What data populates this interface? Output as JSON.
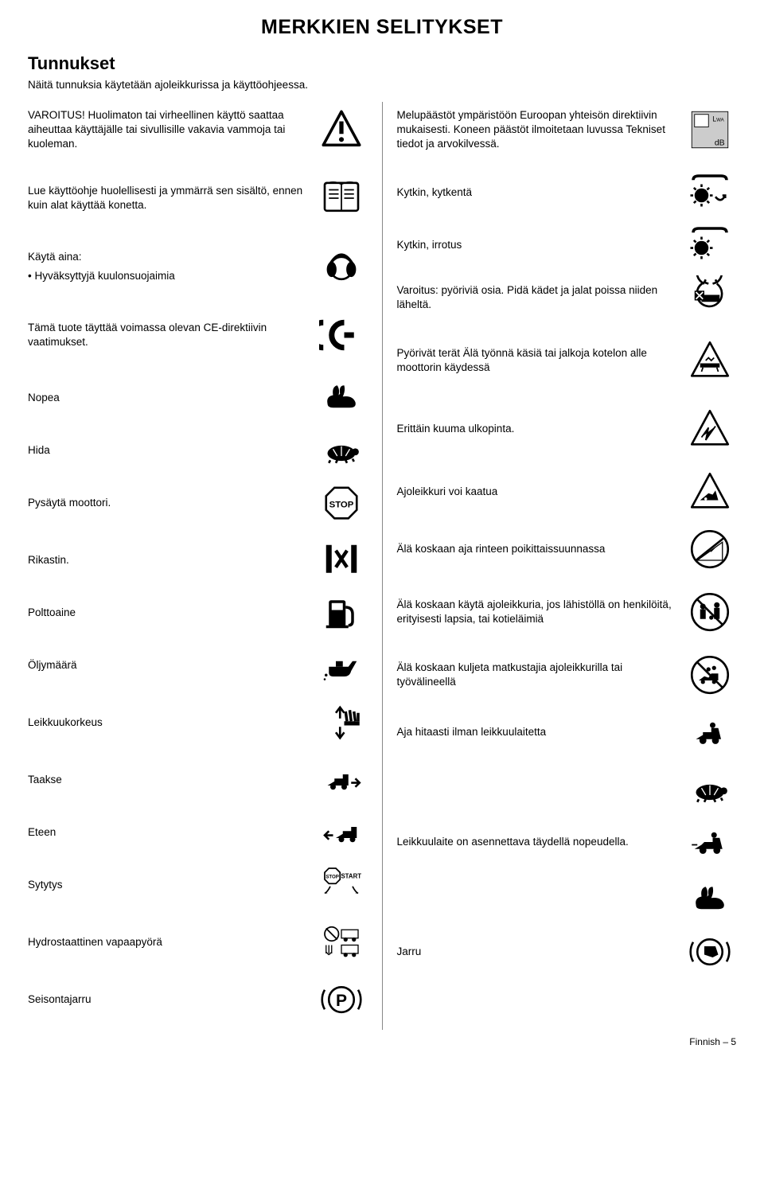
{
  "page": {
    "title": "MERKKIEN SELITYKSET",
    "subtitle": "Tunnukset",
    "intro": "Näitä tunnuksia käytetään ajoleikkurissa ja käyttöohjeessa.",
    "footer_lang": "Finnish",
    "footer_page": "– 5"
  },
  "left": [
    {
      "id": "warning",
      "text": "VAROITUS! Huolimaton tai virheellinen käyttö saattaa aiheuttaa käyttäjälle tai sivullisille vakavia vammoja tai kuoleman.",
      "icon": "triangle-excl"
    },
    {
      "id": "manual",
      "text": "Lue käyttöohje huolellisesti ja ymmärrä sen sisältö, ennen kuin alat käyttää konetta.",
      "icon": "book"
    },
    {
      "id": "ppe",
      "text": "Käytä aina:",
      "bullet": "Hyväksyttyjä kuulonsuojaimia",
      "icon": "earmuffs"
    },
    {
      "id": "ce",
      "text": "Tämä tuote täyttää voimassa olevan CE-direktiivin vaatimukset.",
      "icon": "ce-mark"
    },
    {
      "id": "fast",
      "text": "Nopea",
      "icon": "rabbit"
    },
    {
      "id": "slow",
      "text": "Hida",
      "icon": "turtle"
    },
    {
      "id": "stop-engine",
      "text": "Pysäytä moottori.",
      "icon": "stop-sign"
    },
    {
      "id": "choke",
      "text": "Rikastin.",
      "icon": "choke"
    },
    {
      "id": "fuel",
      "text": "Polttoaine",
      "icon": "fuel-pump"
    },
    {
      "id": "oil",
      "text": "Öljymäärä",
      "icon": "oil-can"
    },
    {
      "id": "cut-height",
      "text": "Leikkuukorkeus",
      "icon": "cut-height"
    },
    {
      "id": "reverse",
      "text": "Taakse",
      "icon": "mower-reverse"
    },
    {
      "id": "forward",
      "text": "Eteen",
      "icon": "mower-forward"
    },
    {
      "id": "ignition",
      "text": "Sytytys",
      "icon": "stop-start"
    },
    {
      "id": "hydro",
      "text": "Hydrostaattinen vapaapyörä",
      "icon": "freewheel"
    },
    {
      "id": "parkbrake",
      "text": "Seisontajarru",
      "icon": "parking-brake"
    }
  ],
  "right": [
    {
      "id": "noise",
      "text": "Melupäästöt ympäristöön Euroopan yhteisön direktiivin mukaisesti. Koneen päästöt ilmoitetaan luvussa Tekniset tiedot ja arvokilvessä.",
      "icon": "lwa-db"
    },
    {
      "id": "clutch-on",
      "text": "Kytkin, kytkentä",
      "icon": "clutch-engage"
    },
    {
      "id": "clutch-off",
      "text": "Kytkin, irrotus",
      "icon": "clutch-release"
    },
    {
      "id": "rotating",
      "text": "Varoitus: pyöriviä osia. Pidä kädet ja jalat poissa niiden läheltä.",
      "icon": "rotating-blades"
    },
    {
      "id": "blades",
      "text": "Pyörivät terät Älä työnnä käsiä tai jalkoja kotelon alle moottorin käydessä",
      "icon": "triangle-blade"
    },
    {
      "id": "hot",
      "text": "Erittäin kuuma ulkopinta.",
      "icon": "triangle-hot"
    },
    {
      "id": "tip",
      "text": "Ajoleikkuri voi kaatua",
      "icon": "triangle-tip"
    },
    {
      "id": "slope",
      "text": "Älä koskaan aja rinteen poikittaissuunnassa",
      "icon": "no-slope"
    },
    {
      "id": "bystanders",
      "text": "Älä koskaan käytä ajoleikkuria, jos lähistöllä on henkilöitä, erityisesti lapsia, tai kotieläimiä",
      "icon": "no-bystanders"
    },
    {
      "id": "passenger",
      "text": "Älä koskaan kuljeta matkustajia ajoleikkurilla tai työvälineellä",
      "icon": "no-passenger"
    },
    {
      "id": "drive-slow",
      "text": "Aja hitaasti ilman leikkuulaitetta",
      "icon": "mower-slow"
    },
    {
      "id": "turtle2",
      "text": "",
      "icon": "turtle"
    },
    {
      "id": "full-speed",
      "text": "Leikkuulaite on asennettava täydellä nopeudella.",
      "icon": "mower-fast"
    },
    {
      "id": "rabbit2",
      "text": "",
      "icon": "rabbit"
    },
    {
      "id": "brake",
      "text": "Jarru",
      "icon": "brake-pedal"
    }
  ],
  "colors": {
    "text": "#000000",
    "bg": "#ffffff",
    "divider": "#888888",
    "icon_fill": "#1a1a1a",
    "icon_grey": "#cccccc"
  }
}
